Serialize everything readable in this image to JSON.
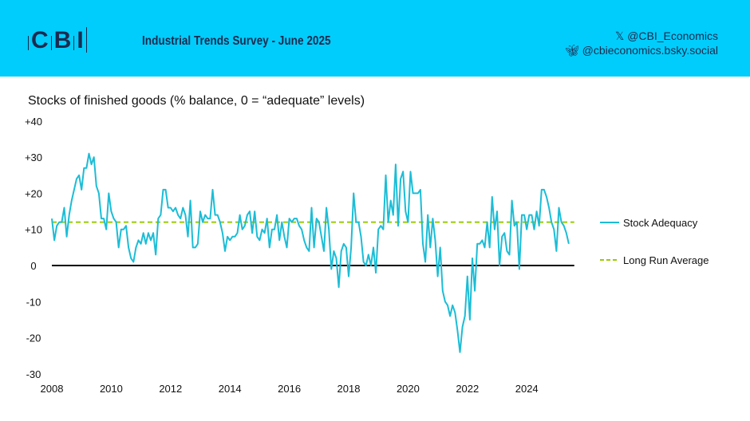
{
  "header": {
    "logo_text": "CBI",
    "subtitle": "Industrial Trends Survey - June 2025",
    "x_handle": "@CBI_Economics",
    "bluesky_handle": "@cbieconomics.bsky.social",
    "x_icon": "x-logo-icon",
    "bluesky_icon": "butterfly-icon",
    "background_color": "#00cdfb"
  },
  "chart_data": {
    "type": "line",
    "title": "Stocks of finished goods (% balance, 0 = “adequate” levels)",
    "x_start": "2008-01",
    "x_end": "2025-06",
    "frequency": "monthly",
    "xlim": [
      2008,
      2025.6
    ],
    "ylim": [
      -30,
      40
    ],
    "x_ticks": [
      "2008",
      "2010",
      "2012",
      "2014",
      "2016",
      "2018",
      "2020",
      "2022",
      "2024"
    ],
    "y_ticks": [
      "+40",
      "+30",
      "+20",
      "+10",
      "0",
      "-10",
      "-20",
      "-30"
    ],
    "grid": false,
    "legend_position": "right",
    "series": [
      {
        "name": "Stock Adequacy",
        "color": "#1bbdd6",
        "style": "solid",
        "values": [
          13,
          7,
          11,
          12,
          12,
          16,
          8,
          14,
          18,
          21,
          24,
          25,
          21,
          27,
          27,
          31,
          28,
          30,
          22,
          20,
          13,
          13,
          10,
          20,
          15,
          13,
          12,
          5,
          10,
          10,
          11,
          5,
          2,
          1,
          5,
          7,
          6,
          9,
          6,
          9,
          7,
          9,
          3,
          13,
          14,
          21,
          21,
          16,
          16,
          15,
          16,
          14,
          13,
          16,
          14,
          8,
          18,
          5,
          5,
          6,
          15,
          12,
          14,
          13,
          13,
          21,
          14,
          14,
          12,
          9,
          4,
          8,
          7,
          8,
          8,
          9,
          14,
          10,
          11,
          14,
          15,
          9,
          15,
          8,
          7,
          10,
          9,
          13,
          5,
          10,
          10,
          14,
          7,
          12,
          8,
          5,
          13,
          12,
          13,
          13,
          11,
          10,
          7,
          5,
          4,
          16,
          5,
          13,
          12,
          8,
          4,
          16,
          10,
          -1,
          4,
          2,
          -6,
          4,
          6,
          5,
          -3,
          5,
          20,
          12,
          12,
          8,
          1,
          0,
          3,
          0,
          5,
          -2,
          10,
          11,
          10,
          25,
          12,
          18,
          14,
          28,
          11,
          24,
          26,
          15,
          12,
          26,
          20,
          20,
          20,
          21,
          6,
          1,
          14,
          5,
          13,
          7,
          -3,
          5,
          -7,
          -10,
          -11,
          -14,
          -11,
          -13,
          -18,
          -24,
          -17,
          -14,
          -3,
          -15,
          2,
          -7,
          6,
          6,
          7,
          5,
          12,
          5,
          19,
          10,
          15,
          0,
          8,
          9,
          4,
          3,
          18,
          11,
          12,
          -1,
          14,
          14,
          10,
          14,
          14,
          10,
          15,
          11,
          21,
          21,
          19,
          16,
          12,
          10,
          4,
          16,
          12,
          11,
          9,
          6
        ]
      },
      {
        "name": "Long Run Average",
        "color": "#99cc00",
        "style": "dashed",
        "value": 12
      }
    ],
    "zero_line_color": "#000000"
  }
}
